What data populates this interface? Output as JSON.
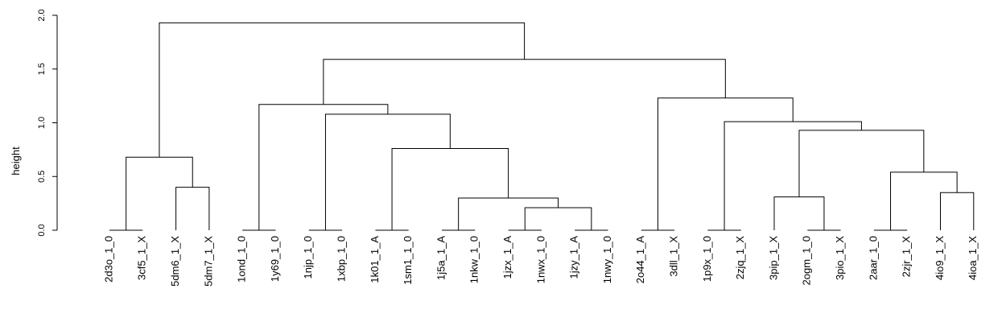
{
  "chart_data": {
    "type": "dendrogram",
    "ylabel": "height",
    "ylim": [
      0,
      2.0
    ],
    "yticks": [
      0.0,
      0.5,
      1.0,
      1.5,
      2.0
    ],
    "ytick_labels": [
      "0.0",
      "0.5",
      "1.0",
      "1.5",
      "2.0"
    ],
    "leaves": [
      "2d3o_1_0",
      "3cf5_1_X",
      "5dm6_1_X",
      "5dm7_1_X",
      "1ond_1_0",
      "1y69_1_0",
      "1njp_1_0",
      "1xbp_1_0",
      "1k01_1_A",
      "1sm1_1_0",
      "1j5a_1_A",
      "1nkw_1_0",
      "1jzx_1_A",
      "1nwx_1_0",
      "1jzy_1_A",
      "1nwy_1_0",
      "2o44_1_A",
      "3dll_1_X",
      "1p9x_1_0",
      "2zjq_1_X",
      "3pip_1_X",
      "2ogm_1_0",
      "3pio_1_X",
      "2aar_1_0",
      "2zjr_1_X",
      "4io9_1_X",
      "4ioa_1_X"
    ],
    "leaf_height": 0.0,
    "merges": [
      {
        "left": "2d3o_1_0",
        "right": "3cf5_1_X",
        "height": 0.0
      },
      {
        "left": "5dm6_1_X",
        "right": "5dm7_1_X",
        "height": 0.4
      },
      {
        "left": "1ond_1_0",
        "right": "1y69_1_0",
        "height": 0.0
      },
      {
        "left": "1njp_1_0",
        "right": "1xbp_1_0",
        "height": 0.0
      },
      {
        "left": "1k01_1_A",
        "right": "1sm1_1_0",
        "height": 0.0
      },
      {
        "left": "1j5a_1_A",
        "right": "1nkw_1_0",
        "height": 0.0
      },
      {
        "left": "1jzx_1_A",
        "right": "1nwx_1_0",
        "height": 0.0
      },
      {
        "left": "1jzy_1_A",
        "right": "1nwy_1_0",
        "height": 0.0
      },
      {
        "left": "2o44_1_A",
        "right": "3dll_1_X",
        "height": 0.0
      },
      {
        "left": "1p9x_1_0",
        "right": "2zjq_1_X",
        "height": 0.0
      },
      {
        "left": "2ogm_1_0",
        "right": "3pio_1_X",
        "height": 0.0
      },
      {
        "left": "2aar_1_0",
        "right": "2zjr_1_X",
        "height": 0.0
      },
      {
        "left": "4io9_1_X",
        "right": "4ioa_1_X",
        "height": 0.35
      },
      {
        "left": "1jzx_1_A+1nwx_1_0",
        "right": "1jzy_1_A+1nwy_1_0",
        "height": 0.21
      },
      {
        "left": "1j5a_1_A+1nkw_1_0",
        "right": "1jzx_1_A+1nwx_1_0+1jzy_1_A+1nwy_1_0",
        "height": 0.3
      },
      {
        "left": "3pip_1_X",
        "right": "2ogm_1_0+3pio_1_X",
        "height": 0.31
      },
      {
        "left": "2aar_1_0+2zjr_1_X",
        "right": "4io9_1_X+4ioa_1_X",
        "height": 0.54
      },
      {
        "left": "2d3o_1_0+3cf5_1_X",
        "right": "5dm6_1_X+5dm7_1_X",
        "height": 0.68
      },
      {
        "left": "1k01_1_A+1sm1_1_0",
        "right": "1j5a_1_A+1nkw_1_0+1jzx_1_A+1nwx_1_0+1jzy_1_A+1nwy_1_0",
        "height": 0.76
      },
      {
        "left": "3pip_1_X+2ogm_1_0+3pio_1_X",
        "right": "2aar_1_0+2zjr_1_X+4io9_1_X+4ioa_1_X",
        "height": 0.93
      },
      {
        "left": "1p9x_1_0+2zjq_1_X",
        "right": "3pip_1_X+2ogm_1_0+3pio_1_X+2aar_1_0+2zjr_1_X+4io9_1_X+4ioa_1_X",
        "height": 1.01
      },
      {
        "left": "1njp_1_0+1xbp_1_0",
        "right": "1k01_1_A+1sm1_1_0+1j5a_1_A+1nkw_1_0+1jzx_1_A+1nwx_1_0+1jzy_1_A+1nwy_1_0",
        "height": 1.08
      },
      {
        "left": "1ond_1_0+1y69_1_0",
        "right": "1njp_1_0+1xbp_1_0+1k01_1_A+1sm1_1_0+1j5a_1_A+1nkw_1_0+1jzx_1_A+1nwx_1_0+1jzy_1_A+1nwy_1_0",
        "height": 1.17
      },
      {
        "left": "2o44_1_A+3dll_1_X",
        "right": "1p9x_1_0+2zjq_1_X+3pip_1_X+2ogm_1_0+3pio_1_X+2aar_1_0+2zjr_1_X+4io9_1_X+4ioa_1_X",
        "height": 1.23
      },
      {
        "left": "1ond_1_0+1y69_1_0+1njp_1_0+1xbp_1_0+1k01_1_A+1sm1_1_0+1j5a_1_A+1nkw_1_0+1jzx_1_A+1nwx_1_0+1jzy_1_A+1nwy_1_0",
        "right": "2o44_1_A+3dll_1_X+1p9x_1_0+2zjq_1_X+3pip_1_X+2ogm_1_0+3pio_1_X+2aar_1_0+2zjr_1_X+4io9_1_X+4ioa_1_X",
        "height": 1.59
      },
      {
        "left": "2d3o_1_0+3cf5_1_X+5dm6_1_X+5dm7_1_X",
        "right": "1ond_1_0+1y69_1_0+1njp_1_0+1xbp_1_0+1k01_1_A+1sm1_1_0+1j5a_1_A+1nkw_1_0+1jzx_1_A+1nwx_1_0+1jzy_1_A+1nwy_1_0+2o44_1_A+3dll_1_X+1p9x_1_0+2zjq_1_X+3pip_1_X+2ogm_1_0+3pio_1_X+2aar_1_0+2zjr_1_X+4io9_1_X+4ioa_1_X",
        "height": 1.93
      }
    ]
  }
}
